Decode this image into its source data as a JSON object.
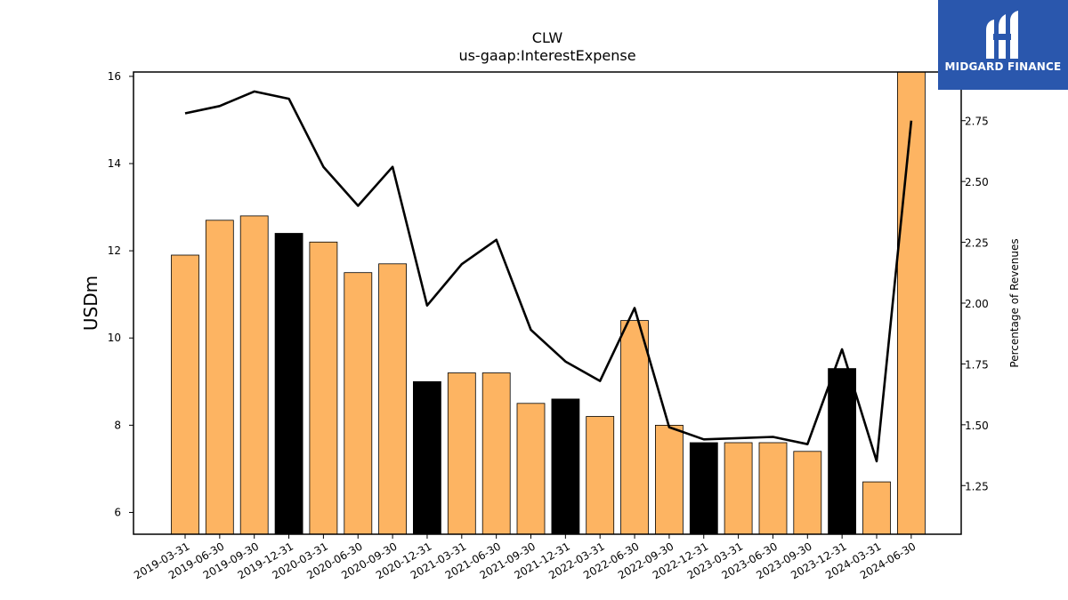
{
  "logo": {
    "text": "MIDGARD FINANCE"
  },
  "colors": {
    "bar_default": "#fdb462",
    "bar_highlight": "#000000",
    "line": "#000000",
    "logo_bg": "#2a57ad"
  },
  "chart_data": {
    "type": "bar",
    "title": "CLW",
    "subtitle": "us-gaap:InterestExpense",
    "ylabel": "USDm",
    "y2label": "Percentage of Revenues",
    "ylim": [
      5.5,
      16.1
    ],
    "y2lim": [
      1.05,
      2.95
    ],
    "yticks": [
      6,
      8,
      10,
      12,
      14,
      16
    ],
    "y2ticks": [
      1.25,
      1.5,
      1.75,
      2.0,
      2.25,
      2.5,
      2.75
    ],
    "y2tick_labels": [
      "1.25",
      "1.50",
      "1.75",
      "2.00",
      "2.25",
      "2.50",
      "2.75"
    ],
    "categories": [
      "2019-03-31",
      "2019-06-30",
      "2019-09-30",
      "2019-12-31",
      "2020-03-31",
      "2020-06-30",
      "2020-09-30",
      "2020-12-31",
      "2021-03-31",
      "2021-06-30",
      "2021-09-30",
      "2021-12-31",
      "2022-03-31",
      "2022-06-30",
      "2022-09-30",
      "2022-12-31",
      "2023-03-31",
      "2023-06-30",
      "2023-09-30",
      "2023-12-31",
      "2024-03-31",
      "2024-06-30"
    ],
    "series": [
      {
        "type": "bar",
        "axis": "left",
        "values": [
          11.9,
          12.7,
          12.8,
          12.4,
          12.2,
          11.5,
          11.7,
          9.0,
          9.2,
          9.2,
          8.5,
          8.6,
          8.2,
          10.4,
          8.0,
          7.6,
          7.6,
          7.6,
          7.4,
          9.3,
          6.7,
          16.1
        ],
        "highlight": [
          false,
          false,
          false,
          true,
          false,
          false,
          false,
          true,
          false,
          false,
          false,
          true,
          false,
          false,
          false,
          true,
          false,
          false,
          false,
          true,
          false,
          false
        ]
      },
      {
        "type": "line",
        "axis": "right",
        "values": [
          2.78,
          2.81,
          2.87,
          2.84,
          2.56,
          2.4,
          2.56,
          1.99,
          2.16,
          2.26,
          1.89,
          1.76,
          1.68,
          1.98,
          1.49,
          1.44,
          1.445,
          1.45,
          1.42,
          1.81,
          1.35,
          2.75
        ]
      }
    ],
    "grid": false,
    "legend": "none"
  }
}
